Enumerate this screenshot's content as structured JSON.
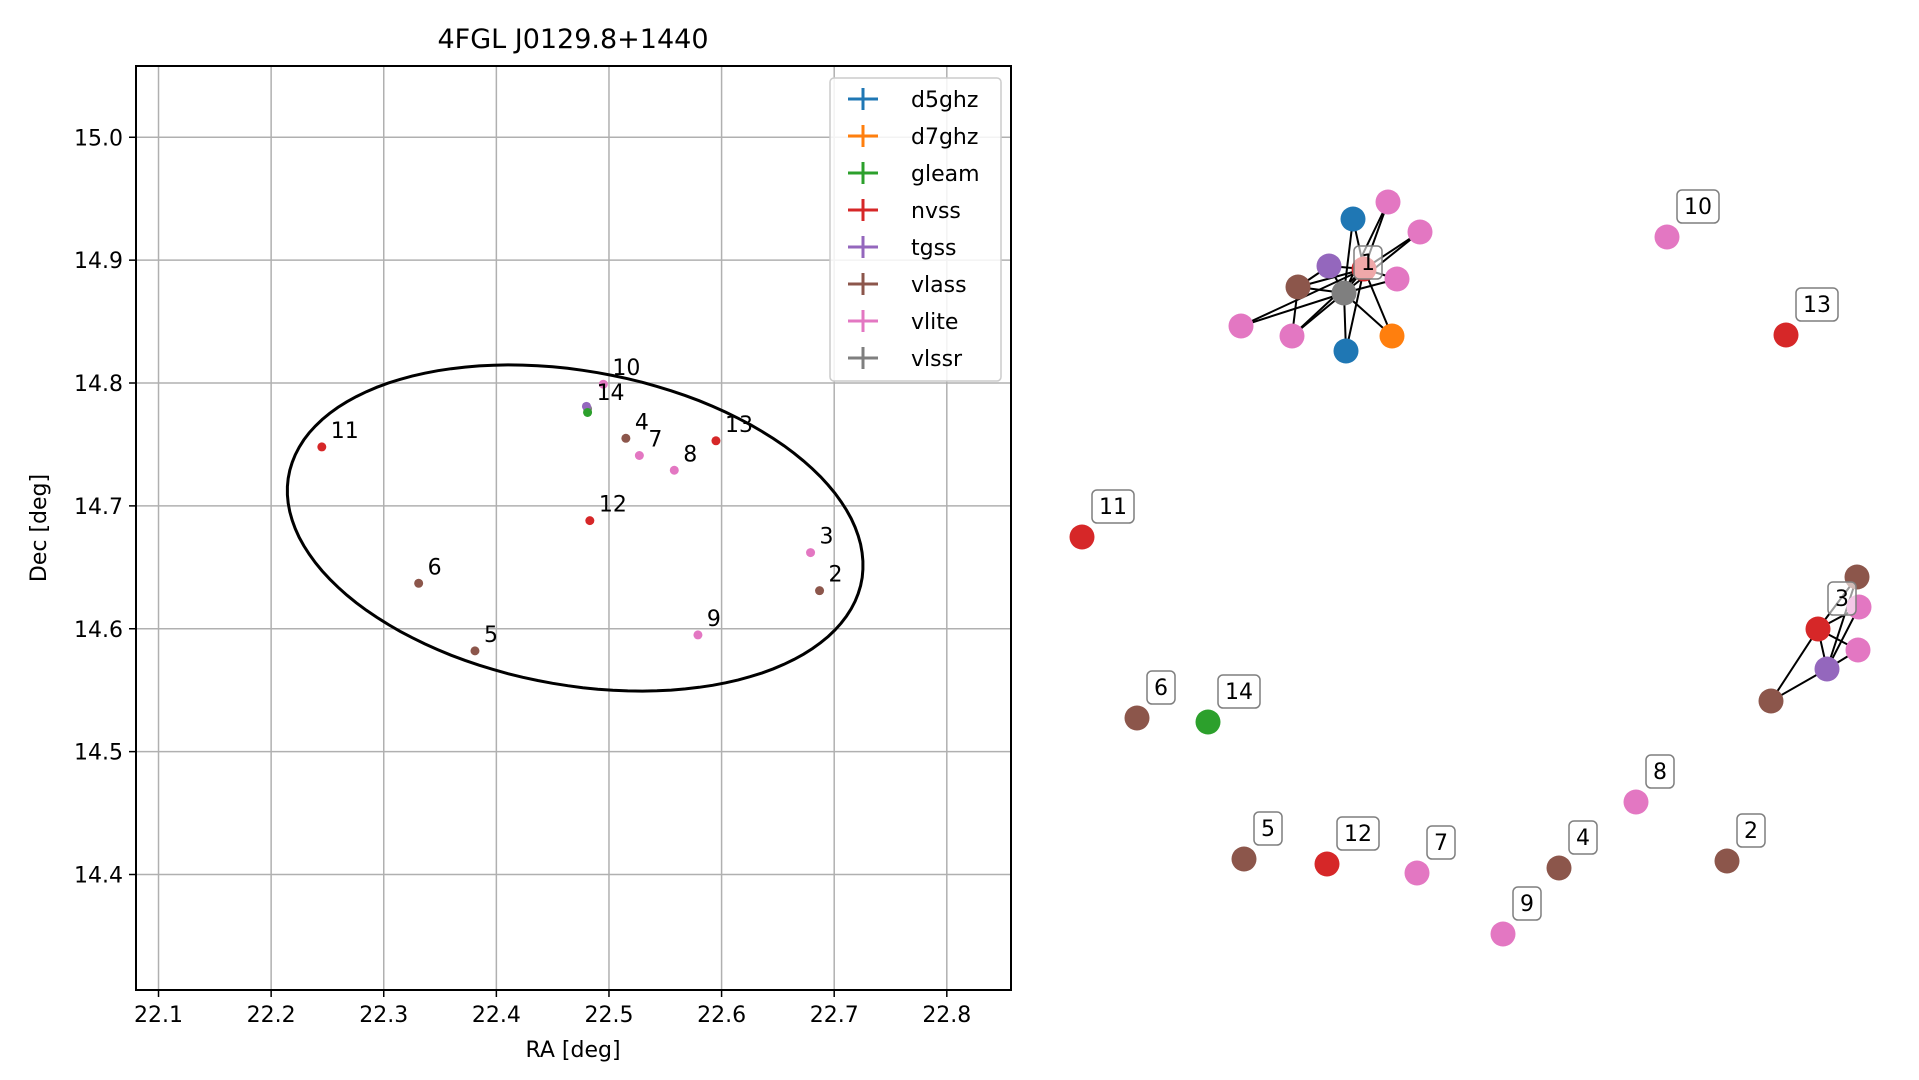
{
  "chart_data": [
    {
      "type": "scatter",
      "title": "4FGL J0129.8+1440",
      "xlabel": "RA [deg]",
      "ylabel": "Dec [deg]",
      "xlim": [
        22.08,
        22.857
      ],
      "ylim": [
        14.306,
        15.058
      ],
      "grid": true,
      "legend_placement": "upper right",
      "xticks": [
        "22.1",
        "22.2",
        "22.3",
        "22.4",
        "22.5",
        "22.6",
        "22.7",
        "22.8"
      ],
      "yticks": [
        "14.4",
        "14.5",
        "14.6",
        "14.7",
        "14.8",
        "14.9",
        "15.0"
      ],
      "legend": [
        {
          "name": "d5ghz",
          "color": "#1f77b4"
        },
        {
          "name": "d7ghz",
          "color": "#ff7f0e"
        },
        {
          "name": "gleam",
          "color": "#2ca02c"
        },
        {
          "name": "nvss",
          "color": "#d62728"
        },
        {
          "name": "tgss",
          "color": "#9467bd"
        },
        {
          "name": "vlass",
          "color": "#8c564b"
        },
        {
          "name": "vlite",
          "color": "#e377c2"
        },
        {
          "name": "vlssr",
          "color": "#7f7f7f"
        }
      ],
      "ellipse": {
        "center": [
          22.47,
          14.682
        ],
        "ra_semi_axis": 0.258,
        "dec_semi_axis": 0.128,
        "angle_deg": -9
      },
      "points": [
        {
          "label": "10",
          "ra": 22.495,
          "dec": 14.799,
          "color": "#e377c2"
        },
        {
          "label": "14",
          "ra": 22.481,
          "dec": 14.779,
          "color": "#7f7f7f"
        },
        {
          "label": "",
          "ra": 22.48,
          "dec": 14.781,
          "color": "#9467bd"
        },
        {
          "label": "",
          "ra": 22.481,
          "dec": 14.776,
          "color": "#2ca02c"
        },
        {
          "label": "11",
          "ra": 22.245,
          "dec": 14.748,
          "color": "#d62728"
        },
        {
          "label": "4",
          "ra": 22.515,
          "dec": 14.755,
          "color": "#8c564b"
        },
        {
          "label": "7",
          "ra": 22.527,
          "dec": 14.741,
          "color": "#e377c2"
        },
        {
          "label": "8",
          "ra": 22.558,
          "dec": 14.729,
          "color": "#e377c2"
        },
        {
          "label": "13",
          "ra": 22.595,
          "dec": 14.753,
          "color": "#d62728"
        },
        {
          "label": "12",
          "ra": 22.483,
          "dec": 14.688,
          "color": "#d62728"
        },
        {
          "label": "3",
          "ra": 22.679,
          "dec": 14.662,
          "color": "#e377c2"
        },
        {
          "label": "2",
          "ra": 22.687,
          "dec": 14.631,
          "color": "#8c564b"
        },
        {
          "label": "6",
          "ra": 22.331,
          "dec": 14.637,
          "color": "#8c564b"
        },
        {
          "label": "9",
          "ra": 22.579,
          "dec": 14.595,
          "color": "#e377c2"
        },
        {
          "label": "5",
          "ra": 22.381,
          "dec": 14.582,
          "color": "#8c564b"
        }
      ]
    },
    {
      "type": "network",
      "title": "",
      "nodes": [
        {
          "id": "c1",
          "label": "",
          "color": "#1f77b4"
        },
        {
          "id": "c2",
          "label": "",
          "color": "#1f77b4"
        },
        {
          "id": "c3",
          "label": "",
          "color": "#ff7f0e"
        },
        {
          "id": "c4",
          "label": "",
          "color": "#9467bd"
        },
        {
          "id": "c5",
          "label": "",
          "color": "#8c564b"
        },
        {
          "id": "c6",
          "label": "",
          "color": "#e377c2"
        },
        {
          "id": "c7",
          "label": "",
          "color": "#e377c2"
        },
        {
          "id": "c8",
          "label": "",
          "color": "#e377c2"
        },
        {
          "id": "c9",
          "label": "",
          "color": "#e377c2"
        },
        {
          "id": "c10",
          "label": "",
          "color": "#e377c2"
        },
        {
          "id": "c11",
          "label": "",
          "color": "#d62728"
        },
        {
          "id": "c12",
          "label": "1",
          "color": "#7f7f7f"
        },
        {
          "id": "n10",
          "label": "10",
          "color": "#e377c2"
        },
        {
          "id": "n13",
          "label": "13",
          "color": "#d62728"
        },
        {
          "id": "n11",
          "label": "11",
          "color": "#d62728"
        },
        {
          "id": "n6",
          "label": "6",
          "color": "#8c564b"
        },
        {
          "id": "n14",
          "label": "14",
          "color": "#2ca02c"
        },
        {
          "id": "n5",
          "label": "5",
          "color": "#8c564b"
        },
        {
          "id": "n12",
          "label": "12",
          "color": "#d62728"
        },
        {
          "id": "n7",
          "label": "7",
          "color": "#e377c2"
        },
        {
          "id": "n9",
          "label": "9",
          "color": "#e377c2"
        },
        {
          "id": "n4",
          "label": "4",
          "color": "#8c564b"
        },
        {
          "id": "n8",
          "label": "8",
          "color": "#e377c2"
        },
        {
          "id": "n2",
          "label": "2",
          "color": "#8c564b"
        },
        {
          "id": "d1",
          "label": "",
          "color": "#8c564b"
        },
        {
          "id": "d2",
          "label": "",
          "color": "#e377c2"
        },
        {
          "id": "d3",
          "label": "",
          "color": "#e377c2"
        },
        {
          "id": "d4",
          "label": "",
          "color": "#9467bd"
        },
        {
          "id": "d5",
          "label": "",
          "color": "#8c564b"
        },
        {
          "id": "d6",
          "label": "3",
          "color": "#d62728"
        }
      ],
      "edges": [
        [
          "c12",
          "c1"
        ],
        [
          "c12",
          "c2"
        ],
        [
          "c12",
          "c3"
        ],
        [
          "c12",
          "c4"
        ],
        [
          "c12",
          "c5"
        ],
        [
          "c12",
          "c6"
        ],
        [
          "c12",
          "c7"
        ],
        [
          "c12",
          "c8"
        ],
        [
          "c12",
          "c9"
        ],
        [
          "c12",
          "c10"
        ],
        [
          "c12",
          "c11"
        ],
        [
          "c11",
          "c1"
        ],
        [
          "c11",
          "c2"
        ],
        [
          "c11",
          "c3"
        ],
        [
          "c11",
          "c4"
        ],
        [
          "c11",
          "c5"
        ],
        [
          "c11",
          "c6"
        ],
        [
          "c11",
          "c7"
        ],
        [
          "c11",
          "c8"
        ],
        [
          "c11",
          "c9"
        ],
        [
          "c11",
          "c10"
        ],
        [
          "c4",
          "c5"
        ],
        [
          "c5",
          "c10"
        ],
        [
          "d6",
          "d1"
        ],
        [
          "d6",
          "d2"
        ],
        [
          "d6",
          "d3"
        ],
        [
          "d6",
          "d4"
        ],
        [
          "d6",
          "d5"
        ],
        [
          "d4",
          "d1"
        ],
        [
          "d4",
          "d2"
        ],
        [
          "d4",
          "d3"
        ],
        [
          "d4",
          "d5"
        ]
      ]
    }
  ]
}
